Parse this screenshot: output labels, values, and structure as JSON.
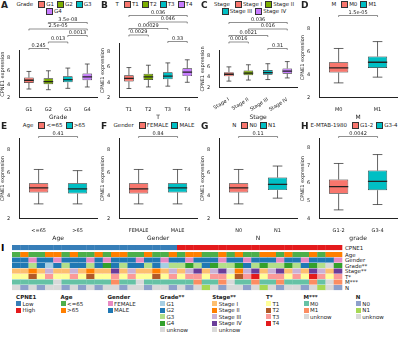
{
  "chart_data": [
    {
      "panel": "A",
      "type": "box",
      "x_label": "Grade",
      "y_label": "CPNE1 expression",
      "legend": "top",
      "legend_title": "Grade",
      "grid": false,
      "categories": [
        "G1",
        "G2",
        "G3",
        "G4"
      ],
      "colors": [
        "#F8766D",
        "#7CAE00",
        "#00BFC4",
        "#C77CFF"
      ],
      "boxes": [
        {
          "whisker_low": 3.3,
          "q1": 4.2,
          "median": 4.6,
          "q3": 5.0,
          "whisker_high": 5.9
        },
        {
          "whisker_low": 3.2,
          "q1": 4.0,
          "median": 4.4,
          "q3": 4.9,
          "whisker_high": 6.0
        },
        {
          "whisker_low": 3.4,
          "q1": 4.3,
          "median": 4.7,
          "q3": 5.2,
          "whisker_high": 6.4
        },
        {
          "whisker_low": 3.6,
          "q1": 4.6,
          "median": 5.1,
          "q3": 5.6,
          "whisker_high": 7.0
        }
      ],
      "ylim": [
        2,
        9
      ],
      "yticks": [
        2,
        4,
        6,
        8
      ],
      "annotations": [
        {
          "from": "G2",
          "to": "G4",
          "label": "3.5e-08"
        },
        {
          "from": "G1",
          "to": "G4",
          "label": "2.5e-05"
        },
        {
          "from": "G3",
          "to": "G4",
          "label": "0.0013"
        },
        {
          "from": "G2",
          "to": "G3",
          "label": "0.013"
        },
        {
          "from": "G1",
          "to": "G2",
          "label": "0.245"
        }
      ]
    },
    {
      "panel": "B",
      "type": "box",
      "x_label": "T",
      "y_label": "CPNE1 expression",
      "legend": "top",
      "legend_title": "T",
      "grid": false,
      "categories": [
        "T1",
        "T2",
        "T3",
        "T4"
      ],
      "colors": [
        "#F8766D",
        "#7CAE00",
        "#00BFC4",
        "#C77CFF"
      ],
      "boxes": [
        {
          "whisker_low": 3.2,
          "q1": 4.1,
          "median": 4.5,
          "q3": 4.9,
          "whisker_high": 5.9
        },
        {
          "whisker_low": 3.4,
          "q1": 4.3,
          "median": 4.7,
          "q3": 5.1,
          "whisker_high": 6.2
        },
        {
          "whisker_low": 3.5,
          "q1": 4.4,
          "median": 4.8,
          "q3": 5.3,
          "whisker_high": 6.5
        },
        {
          "whisker_low": 4.0,
          "q1": 4.8,
          "median": 5.3,
          "q3": 5.8,
          "whisker_high": 6.9
        }
      ],
      "ylim": [
        2,
        9
      ],
      "yticks": [
        2,
        4,
        6,
        8
      ],
      "annotations": [
        {
          "from": "T1",
          "to": "T4",
          "label": "0.036"
        },
        {
          "from": "T2",
          "to": "T4",
          "label": "0.046"
        },
        {
          "from": "T1",
          "to": "T3",
          "label": "0.00029"
        },
        {
          "from": "T1",
          "to": "T2",
          "label": "0.0029"
        },
        {
          "from": "T3",
          "to": "T4",
          "label": "0.33"
        }
      ]
    },
    {
      "panel": "C",
      "type": "box",
      "x_label": "Stage",
      "y_label": "CPNE1 expression",
      "legend": "top",
      "legend_title": "Stage",
      "grid": false,
      "categories": [
        "Stage I",
        "Stage II",
        "Stage III",
        "Stage IV"
      ],
      "colors": [
        "#F8766D",
        "#7CAE00",
        "#00BFC4",
        "#C77CFF"
      ],
      "boxes": [
        {
          "whisker_low": 3.2,
          "q1": 4.1,
          "median": 4.5,
          "q3": 4.9,
          "whisker_high": 5.9
        },
        {
          "whisker_low": 3.4,
          "q1": 4.3,
          "median": 4.7,
          "q3": 5.2,
          "whisker_high": 6.3
        },
        {
          "whisker_low": 3.5,
          "q1": 4.4,
          "median": 4.8,
          "q3": 5.3,
          "whisker_high": 6.5
        },
        {
          "whisker_low": 3.8,
          "q1": 4.6,
          "median": 5.1,
          "q3": 5.6,
          "whisker_high": 6.9
        }
      ],
      "ylim": [
        2,
        9
      ],
      "yticks": [
        2,
        4,
        6,
        8
      ],
      "annotations": [
        {
          "from": "Stage I",
          "to": "Stage IV",
          "label": "0.036"
        },
        {
          "from": "Stage II",
          "to": "Stage IV",
          "label": "0.016"
        },
        {
          "from": "Stage I",
          "to": "Stage III",
          "label": "0.0021"
        },
        {
          "from": "Stage I",
          "to": "Stage II",
          "label": "0.0016"
        },
        {
          "from": "Stage III",
          "to": "Stage IV",
          "label": "0.31"
        }
      ]
    },
    {
      "panel": "D",
      "type": "box",
      "x_label": "M",
      "y_label": "CPNE1 expression",
      "legend": "top",
      "legend_title": "M",
      "grid": false,
      "categories": [
        "M0",
        "M1"
      ],
      "colors": [
        "#F8766D",
        "#00BFC4"
      ],
      "boxes": [
        {
          "whisker_low": 3.3,
          "q1": 4.2,
          "median": 4.6,
          "q3": 5.1,
          "whisker_high": 6.3
        },
        {
          "whisker_low": 3.8,
          "q1": 4.6,
          "median": 5.1,
          "q3": 5.6,
          "whisker_high": 6.9
        }
      ],
      "ylim": [
        2,
        9
      ],
      "yticks": [
        2,
        4,
        6,
        8
      ],
      "annotations": [
        {
          "from": "M0",
          "to": "M1",
          "label": "1.5e-05"
        }
      ]
    },
    {
      "panel": "E",
      "type": "box",
      "x_label": "Age",
      "y_label": "CPNE1 expression",
      "legend": "top",
      "legend_title": "Age",
      "grid": false,
      "categories": [
        "<=65",
        ">65"
      ],
      "colors": [
        "#F8766D",
        "#00BFC4"
      ],
      "boxes": [
        {
          "whisker_low": 3.3,
          "q1": 4.3,
          "median": 4.7,
          "q3": 5.1,
          "whisker_high": 6.3
        },
        {
          "whisker_low": 3.3,
          "q1": 4.2,
          "median": 4.6,
          "q3": 5.1,
          "whisker_high": 6.2
        }
      ],
      "ylim": [
        2,
        9
      ],
      "yticks": [
        2,
        4,
        6,
        8
      ],
      "annotations": [
        {
          "from": "<=65",
          "to": ">65",
          "label": "0.41"
        }
      ]
    },
    {
      "panel": "F",
      "type": "box",
      "x_label": "Gender",
      "y_label": "CPNE1 expression",
      "legend": "top",
      "legend_title": "Gender",
      "grid": false,
      "categories": [
        "FEMALE",
        "MALE"
      ],
      "colors": [
        "#F8766D",
        "#00BFC4"
      ],
      "boxes": [
        {
          "whisker_low": 3.3,
          "q1": 4.2,
          "median": 4.6,
          "q3": 5.1,
          "whisker_high": 6.3
        },
        {
          "whisker_low": 3.3,
          "q1": 4.3,
          "median": 4.7,
          "q3": 5.1,
          "whisker_high": 6.3
        }
      ],
      "ylim": [
        2,
        9
      ],
      "yticks": [
        2,
        4,
        6,
        8
      ],
      "annotations": [
        {
          "from": "FEMALE",
          "to": "MALE",
          "label": "0.84"
        }
      ]
    },
    {
      "panel": "G",
      "type": "box",
      "x_label": "N",
      "y_label": "CPNE1 expression",
      "legend": "top",
      "legend_title": "N",
      "grid": false,
      "categories": [
        "N0",
        "N1"
      ],
      "colors": [
        "#F8766D",
        "#00BFC4"
      ],
      "boxes": [
        {
          "whisker_low": 3.3,
          "q1": 4.3,
          "median": 4.7,
          "q3": 5.1,
          "whisker_high": 6.3
        },
        {
          "whisker_low": 3.8,
          "q1": 4.5,
          "median": 5.0,
          "q3": 5.6,
          "whisker_high": 6.6
        }
      ],
      "ylim": [
        2,
        9
      ],
      "yticks": [
        2,
        4,
        6,
        8
      ],
      "annotations": [
        {
          "from": "N0",
          "to": "N1",
          "label": "0.11"
        }
      ]
    },
    {
      "panel": "H",
      "type": "box",
      "x_label": "grade",
      "y_label": "CPNE1 expression",
      "legend": "top",
      "legend_title": "E-MTAB-1980",
      "grid": false,
      "categories": [
        "G1-2",
        "G3-4"
      ],
      "colors": [
        "#F8766D",
        "#00BFC4"
      ],
      "boxes": [
        {
          "whisker_low": 4.5,
          "q1": 5.4,
          "median": 5.8,
          "q3": 6.2,
          "whisker_high": 7.1
        },
        {
          "whisker_low": 4.8,
          "q1": 5.6,
          "median": 6.1,
          "q3": 6.7,
          "whisker_high": 7.6
        }
      ],
      "ylim": [
        4,
        8.5
      ],
      "yticks": [
        4,
        5,
        6,
        7,
        8
      ],
      "annotations": [
        {
          "from": "G1-2",
          "to": "G3-4",
          "label": "0.0042"
        }
      ]
    }
  ],
  "heatmap": {
    "panel": "I",
    "type": "heatmap",
    "legend": "bottom",
    "rows": [
      {
        "name": "CPNE1",
        "labels": [
          "Low",
          "High"
        ],
        "colors": [
          "#377EB8",
          "#E41A1C"
        ],
        "cells": [
          0,
          0,
          0,
          0,
          0,
          0,
          0,
          0,
          0,
          0,
          0,
          0,
          0,
          0,
          0,
          0,
          0,
          0,
          0,
          0,
          1,
          1,
          1,
          1,
          1,
          1,
          1,
          1,
          1,
          1,
          1,
          1,
          1,
          1,
          1,
          1,
          1,
          1,
          1,
          1
        ]
      },
      {
        "name": "Age",
        "labels": [
          "<=65",
          ">65"
        ],
        "colors": [
          "#4DAF4A",
          "#FF7F00"
        ],
        "cells": [
          0,
          1,
          0,
          0,
          1,
          1,
          0,
          1,
          0,
          0,
          1,
          0,
          1,
          1,
          0,
          0,
          1,
          0,
          0,
          1,
          0,
          1,
          1,
          0,
          0,
          1,
          0,
          1,
          0,
          0,
          1,
          1,
          0,
          1,
          0,
          0,
          1,
          0,
          1,
          1
        ]
      },
      {
        "name": "Gender",
        "labels": [
          "FEMALE",
          "MALE"
        ],
        "colors": [
          "#E78AC3",
          "#1F78B4"
        ],
        "cells": [
          1,
          1,
          0,
          1,
          1,
          0,
          1,
          1,
          1,
          0,
          1,
          0,
          1,
          1,
          1,
          0,
          1,
          1,
          0,
          1,
          1,
          0,
          1,
          1,
          1,
          0,
          1,
          1,
          0,
          1,
          1,
          1,
          0,
          1,
          1,
          0,
          1,
          1,
          1,
          0
        ]
      },
      {
        "name": "Grade**",
        "labels": [
          "G1",
          "G2",
          "G3",
          "G4",
          "unknow"
        ],
        "colors": [
          "#A6CEE3",
          "#1F78B4",
          "#B2DF8A",
          "#33A02C",
          "#D9D9D9"
        ],
        "cells": [
          1,
          1,
          2,
          1,
          0,
          1,
          2,
          1,
          1,
          2,
          1,
          3,
          1,
          2,
          1,
          1,
          2,
          1,
          0,
          2,
          2,
          3,
          2,
          1,
          3,
          2,
          2,
          3,
          1,
          2,
          3,
          2,
          2,
          3,
          2,
          1,
          3,
          2,
          4,
          3
        ]
      },
      {
        "name": "Stage**",
        "labels": [
          "Stage I",
          "Stage II",
          "Stage III",
          "Stage IV",
          "unknow"
        ],
        "colors": [
          "#FDBF6F",
          "#FF7F00",
          "#CAB2D6",
          "#6A3D9A",
          "#D9D9D9"
        ],
        "cells": [
          0,
          0,
          1,
          0,
          2,
          0,
          0,
          2,
          0,
          1,
          0,
          0,
          3,
          0,
          2,
          0,
          0,
          1,
          0,
          2,
          0,
          2,
          3,
          0,
          2,
          3,
          4,
          1,
          2,
          3,
          0,
          2,
          3,
          0,
          2,
          0,
          3,
          2,
          0,
          3
        ]
      },
      {
        "name": "T*",
        "labels": [
          "T1",
          "T2",
          "T3",
          "T4"
        ],
        "colors": [
          "#FFFF99",
          "#B15928",
          "#FB9A99",
          "#E31A1C"
        ],
        "cells": [
          0,
          0,
          1,
          0,
          2,
          0,
          0,
          2,
          0,
          1,
          0,
          0,
          2,
          0,
          2,
          0,
          0,
          1,
          0,
          2,
          0,
          2,
          2,
          0,
          2,
          2,
          0,
          1,
          2,
          3,
          0,
          2,
          2,
          0,
          2,
          0,
          3,
          2,
          0,
          2
        ]
      },
      {
        "name": "M***",
        "labels": [
          "M0",
          "M1",
          "unknow"
        ],
        "colors": [
          "#66C2A5",
          "#FC8D62",
          "#D9D9D9"
        ],
        "cells": [
          0,
          0,
          0,
          0,
          0,
          2,
          0,
          0,
          0,
          0,
          0,
          0,
          1,
          0,
          0,
          2,
          0,
          0,
          0,
          0,
          0,
          0,
          1,
          0,
          0,
          1,
          2,
          0,
          0,
          1,
          0,
          0,
          1,
          0,
          0,
          0,
          1,
          0,
          2,
          1
        ]
      },
      {
        "name": "N",
        "labels": [
          "N0",
          "N1",
          "unknow"
        ],
        "colors": [
          "#8DA0CB",
          "#A6D854",
          "#D9D9D9"
        ],
        "cells": [
          2,
          0,
          2,
          0,
          2,
          2,
          0,
          2,
          0,
          2,
          0,
          2,
          2,
          0,
          2,
          2,
          0,
          2,
          2,
          0,
          2,
          0,
          2,
          1,
          2,
          0,
          2,
          2,
          0,
          2,
          1,
          2,
          0,
          2,
          2,
          0,
          2,
          1,
          2,
          0
        ]
      }
    ]
  }
}
